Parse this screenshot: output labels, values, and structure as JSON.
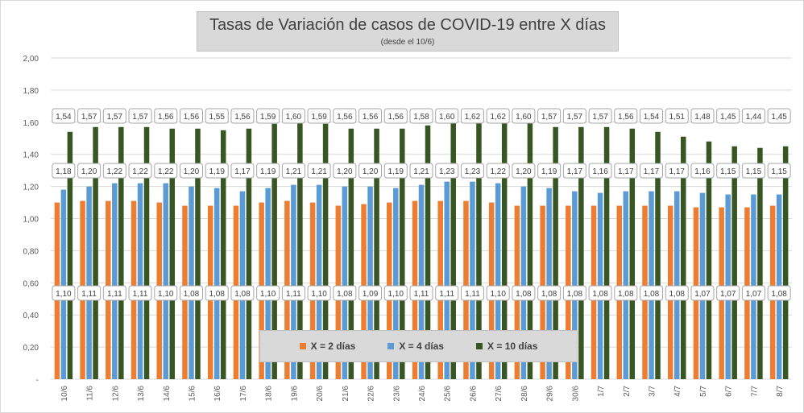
{
  "chart_data": {
    "type": "bar",
    "title": "Tasas de Variación de casos de COVID-19 entre X días",
    "subtitle": "(desde el 10/6)",
    "categories": [
      "10/6",
      "11/6",
      "12/6",
      "13/6",
      "14/6",
      "15/6",
      "16/6",
      "17/6",
      "18/6",
      "19/6",
      "20/6",
      "21/6",
      "22/6",
      "23/6",
      "24/6",
      "25/6",
      "26/6",
      "27/6",
      "28/6",
      "29/6",
      "30/6",
      "1/7",
      "2/7",
      "3/7",
      "4/7",
      "5/7",
      "6/7",
      "7/7",
      "8/7"
    ],
    "series": [
      {
        "name": "X = 2 días",
        "color": "#ed7d31",
        "values": [
          1.1,
          1.11,
          1.11,
          1.11,
          1.1,
          1.08,
          1.08,
          1.08,
          1.1,
          1.11,
          1.1,
          1.08,
          1.09,
          1.1,
          1.11,
          1.11,
          1.11,
          1.1,
          1.08,
          1.08,
          1.08,
          1.08,
          1.08,
          1.08,
          1.08,
          1.07,
          1.07,
          1.07,
          1.08
        ],
        "labels": [
          "1,10",
          "1,11",
          "1,11",
          "1,11",
          "1,10",
          "1,08",
          "1,08",
          "1,08",
          "1,10",
          "1,11",
          "1,10",
          "1,08",
          "1,09",
          "1,10",
          "1,11",
          "1,11",
          "1,11",
          "1,10",
          "1,08",
          "1,08",
          "1,08",
          "1,08",
          "1,08",
          "1,08",
          "1,08",
          "1,07",
          "1,07",
          "1,07",
          "1,08"
        ]
      },
      {
        "name": "X = 4 días",
        "color": "#5b9bd5",
        "values": [
          1.18,
          1.2,
          1.22,
          1.22,
          1.22,
          1.2,
          1.19,
          1.17,
          1.19,
          1.21,
          1.21,
          1.2,
          1.2,
          1.19,
          1.21,
          1.23,
          1.23,
          1.22,
          1.2,
          1.19,
          1.17,
          1.16,
          1.17,
          1.17,
          1.17,
          1.16,
          1.15,
          1.15,
          1.15
        ],
        "labels": [
          "1,18",
          "1,20",
          "1,22",
          "1,22",
          "1,22",
          "1,20",
          "1,19",
          "1,17",
          "1,19",
          "1,21",
          "1,21",
          "1,20",
          "1,20",
          "1,19",
          "1,21",
          "1,23",
          "1,23",
          "1,22",
          "1,20",
          "1,19",
          "1,17",
          "1,16",
          "1,17",
          "1,17",
          "1,17",
          "1,16",
          "1,15",
          "1,15",
          "1,15"
        ]
      },
      {
        "name": "X = 10 días",
        "color": "#375623",
        "values": [
          1.54,
          1.57,
          1.57,
          1.57,
          1.56,
          1.56,
          1.55,
          1.56,
          1.59,
          1.6,
          1.59,
          1.56,
          1.56,
          1.56,
          1.58,
          1.6,
          1.62,
          1.62,
          1.6,
          1.57,
          1.57,
          1.57,
          1.56,
          1.54,
          1.51,
          1.48,
          1.45,
          1.44,
          1.45
        ],
        "labels": [
          "1,54",
          "1,57",
          "1,57",
          "1,57",
          "1,56",
          "1,56",
          "1,55",
          "1,56",
          "1,59",
          "1,60",
          "1,59",
          "1,56",
          "1,56",
          "1,56",
          "1,58",
          "1,60",
          "1,62",
          "1,62",
          "1,60",
          "1,57",
          "1,57",
          "1,57",
          "1,56",
          "1,54",
          "1,51",
          "1,48",
          "1,45",
          "1,44",
          "1,45"
        ]
      }
    ],
    "yticks": [
      "-",
      "0,20",
      "0,40",
      "0,60",
      "0,80",
      "1,00",
      "1,20",
      "1,40",
      "1,60",
      "1,80",
      "2,00"
    ],
    "ylim": [
      0,
      2
    ],
    "grid": true,
    "legend_position": "bottom-center",
    "xlabel": "",
    "ylabel": ""
  }
}
